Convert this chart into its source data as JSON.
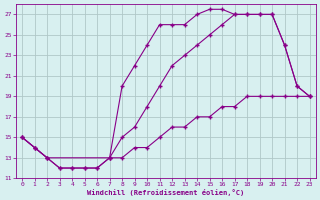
{
  "xlabel": "Windchill (Refroidissement éolien,°C)",
  "bg_color": "#d8f0f0",
  "grid_color": "#b0c8c8",
  "line_color": "#880088",
  "xlim": [
    -0.5,
    23.5
  ],
  "ylim": [
    11,
    28
  ],
  "xticks": [
    0,
    1,
    2,
    3,
    4,
    5,
    6,
    7,
    8,
    9,
    10,
    11,
    12,
    13,
    14,
    15,
    16,
    17,
    18,
    19,
    20,
    21,
    22,
    23
  ],
  "yticks": [
    11,
    13,
    15,
    17,
    19,
    21,
    23,
    25,
    27
  ],
  "line1_x": [
    0,
    1,
    2,
    3,
    4,
    5,
    6,
    7,
    8,
    9,
    10,
    11,
    12,
    13,
    14,
    15,
    16,
    17,
    18,
    19,
    20,
    21,
    22,
    23
  ],
  "line1_y": [
    15,
    14,
    13,
    12,
    12,
    12,
    12,
    13,
    20,
    22,
    24,
    26,
    26,
    26,
    27,
    27.5,
    27.5,
    27,
    27,
    27,
    27,
    24,
    20,
    19
  ],
  "line2_x": [
    0,
    1,
    2,
    7,
    8,
    9,
    10,
    11,
    12,
    13,
    14,
    15,
    16,
    17,
    18,
    19,
    20,
    21,
    22,
    23
  ],
  "line2_y": [
    15,
    14,
    13,
    13,
    15,
    16,
    18,
    20,
    22,
    23,
    24,
    25,
    26,
    27,
    27,
    27,
    27,
    24,
    20,
    19
  ],
  "line3_x": [
    0,
    1,
    2,
    3,
    4,
    5,
    6,
    7,
    8,
    9,
    10,
    11,
    12,
    13,
    14,
    15,
    16,
    17,
    18,
    19,
    20,
    21,
    22,
    23
  ],
  "line3_y": [
    15,
    14,
    13,
    12,
    12,
    12,
    12,
    13,
    13,
    14,
    14,
    15,
    16,
    16,
    17,
    17,
    18,
    18,
    19,
    19,
    19,
    19,
    19,
    19
  ]
}
